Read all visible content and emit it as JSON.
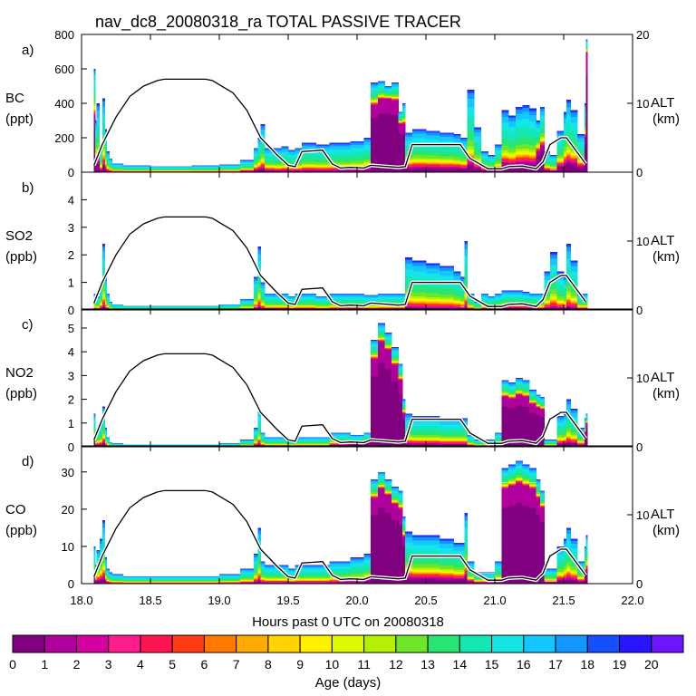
{
  "title": "nav_dc8_20080318_ra TOTAL PASSIVE TRACER",
  "chart_data": {
    "type": "area",
    "x": {
      "label": "Hours past 0 UTC on 20080318",
      "range": [
        18.0,
        22.0
      ],
      "ticks": [
        "18.0",
        "18.5",
        "19.0",
        "19.5",
        "20.0",
        "20.5",
        "21.0",
        "21.5",
        "22.0"
      ]
    },
    "altitude_axis": {
      "label": "ALT",
      "unit": "(km)",
      "range": [
        0,
        20
      ]
    },
    "altitude_profile": {
      "name": "ALT",
      "x": [
        18.09,
        18.15,
        18.25,
        18.35,
        18.45,
        18.55,
        18.6,
        18.9,
        18.95,
        19.1,
        19.2,
        19.3,
        19.42,
        19.5,
        19.55,
        19.6,
        19.75,
        19.82,
        19.88,
        19.95,
        20.05,
        20.1,
        20.3,
        20.35,
        20.4,
        20.75,
        20.82,
        20.95,
        21.05,
        21.1,
        21.2,
        21.3,
        21.35,
        21.4,
        21.48,
        21.52,
        21.66
      ],
      "y": [
        1,
        4,
        8,
        11,
        12.5,
        13.3,
        13.5,
        13.5,
        13.3,
        11.5,
        9,
        5,
        2.5,
        1,
        0.8,
        3,
        3.2,
        1.2,
        0.6,
        0.7,
        0.6,
        1,
        0.7,
        0.8,
        4,
        4,
        2,
        0.5,
        0.5,
        0.8,
        0.9,
        0.5,
        1.5,
        4,
        5,
        5,
        1.2
      ]
    },
    "colorbar": {
      "label": "Age (days)",
      "ticks": [
        "0",
        "1",
        "2",
        "3",
        "4",
        "5",
        "6",
        "7",
        "8",
        "9",
        "10",
        "11",
        "12",
        "13",
        "14",
        "15",
        "16",
        "17",
        "18",
        "19",
        "20"
      ],
      "colors": [
        "#800080",
        "#b0009b",
        "#d4009f",
        "#ff1c8c",
        "#ff1452",
        "#ff3c14",
        "#ff7800",
        "#ffaa00",
        "#ffd200",
        "#fff000",
        "#e0fa00",
        "#b4f000",
        "#6ee628",
        "#28e673",
        "#14e6b4",
        "#14e6e6",
        "#14c8ff",
        "#1496ff",
        "#1450ff",
        "#2814ff",
        "#6e14ff"
      ]
    },
    "panels": [
      {
        "letter": "a)",
        "name": "BC",
        "unit": "(ppt)",
        "ylim": [
          0,
          800
        ],
        "yticks": [
          "0",
          "200",
          "400",
          "600",
          "800"
        ],
        "alt_ticks": [
          "0",
          "10",
          "20"
        ],
        "x": [
          18.09,
          18.1,
          18.11,
          18.13,
          18.15,
          18.17,
          18.18,
          18.2,
          18.22,
          18.3,
          18.5,
          18.8,
          19.0,
          19.15,
          19.25,
          19.28,
          19.3,
          19.33,
          19.4,
          19.45,
          19.5,
          19.55,
          19.6,
          19.7,
          19.8,
          19.95,
          20.05,
          20.1,
          20.15,
          20.2,
          20.25,
          20.3,
          20.33,
          20.35,
          20.4,
          20.5,
          20.6,
          20.7,
          20.75,
          20.78,
          20.8,
          20.85,
          20.9,
          20.95,
          21.0,
          21.05,
          21.1,
          21.15,
          21.2,
          21.25,
          21.3,
          21.33,
          21.36,
          21.4,
          21.45,
          21.5,
          21.52,
          21.55,
          21.6,
          21.65,
          21.66
        ],
        "values": [
          600,
          300,
          400,
          150,
          430,
          250,
          120,
          80,
          50,
          40,
          35,
          40,
          45,
          70,
          140,
          200,
          280,
          140,
          140,
          150,
          130,
          140,
          170,
          160,
          170,
          180,
          200,
          520,
          530,
          500,
          520,
          350,
          400,
          230,
          250,
          240,
          230,
          220,
          200,
          200,
          480,
          260,
          120,
          100,
          160,
          360,
          330,
          380,
          390,
          370,
          300,
          380,
          120,
          100,
          240,
          350,
          420,
          360,
          220,
          400,
          770
        ],
        "old_frac": [
          0.55,
          0.2,
          0.15,
          0.08,
          0.1,
          0.06,
          0.05,
          0.05,
          0.05,
          0.05,
          0.05,
          0.05,
          0.06,
          0.08,
          0.1,
          0.08,
          0.08,
          0.08,
          0.06,
          0.06,
          0.06,
          0.06,
          0.06,
          0.06,
          0.06,
          0.06,
          0.08,
          0.75,
          0.8,
          0.85,
          0.8,
          0.8,
          0.7,
          0.12,
          0.12,
          0.12,
          0.12,
          0.12,
          0.12,
          0.12,
          0.1,
          0.1,
          0.1,
          0.1,
          0.1,
          0.15,
          0.15,
          0.15,
          0.15,
          0.15,
          0.4,
          0.4,
          0.1,
          0.1,
          0.15,
          0.15,
          0.15,
          0.15,
          0.15,
          0.5,
          0.9
        ]
      },
      {
        "letter": "b)",
        "name": "SO2",
        "unit": "(ppb)",
        "ylim": [
          0,
          5
        ],
        "yticks": [
          "0",
          "1",
          "2",
          "3",
          "4"
        ],
        "alt_ticks": [
          "0",
          "10"
        ],
        "x": [
          18.09,
          18.1,
          18.11,
          18.13,
          18.15,
          18.17,
          18.18,
          18.2,
          18.22,
          18.3,
          18.5,
          18.8,
          19.0,
          19.15,
          19.25,
          19.28,
          19.3,
          19.33,
          19.4,
          19.45,
          19.5,
          19.55,
          19.6,
          19.7,
          19.8,
          19.95,
          20.05,
          20.1,
          20.15,
          20.2,
          20.25,
          20.3,
          20.33,
          20.35,
          20.4,
          20.5,
          20.6,
          20.7,
          20.75,
          20.78,
          20.8,
          20.85,
          20.9,
          20.95,
          21.0,
          21.05,
          21.1,
          21.15,
          21.2,
          21.25,
          21.3,
          21.33,
          21.36,
          21.4,
          21.45,
          21.5,
          21.52,
          21.55,
          21.6,
          21.65,
          21.66
        ],
        "values": [
          0.6,
          0.5,
          0.5,
          1.0,
          2.4,
          1.2,
          0.6,
          0.3,
          0.2,
          0.15,
          0.15,
          0.15,
          0.2,
          0.4,
          1.2,
          2.3,
          1.0,
          0.6,
          0.6,
          0.6,
          0.5,
          0.6,
          0.6,
          0.5,
          0.6,
          0.6,
          0.55,
          0.55,
          0.6,
          0.6,
          0.6,
          0.6,
          0.6,
          1.9,
          1.8,
          1.7,
          1.6,
          1.4,
          1.2,
          2.5,
          0.6,
          0.3,
          0.6,
          0.5,
          0.6,
          0.7,
          0.7,
          0.7,
          0.65,
          0.6,
          0.6,
          0.6,
          1.4,
          2.1,
          1.4,
          1.2,
          2.4,
          1.8,
          0.6,
          0.6,
          0.6
        ],
        "old_frac": [
          0.05,
          0.05,
          0.05,
          0.05,
          0.05,
          0.05,
          0.05,
          0.05,
          0.05,
          0.05,
          0.05,
          0.05,
          0.05,
          0.05,
          0.05,
          0.05,
          0.05,
          0.05,
          0.05,
          0.05,
          0.05,
          0.05,
          0.05,
          0.05,
          0.05,
          0.05,
          0.05,
          0.05,
          0.05,
          0.05,
          0.05,
          0.05,
          0.05,
          0.05,
          0.05,
          0.05,
          0.05,
          0.05,
          0.05,
          0.05,
          0.05,
          0.05,
          0.05,
          0.05,
          0.05,
          0.12,
          0.12,
          0.12,
          0.12,
          0.12,
          0.05,
          0.05,
          0.05,
          0.05,
          0.05,
          0.05,
          0.05,
          0.05,
          0.05,
          0.05,
          0.05
        ]
      },
      {
        "letter": "c)",
        "name": "NO2",
        "unit": "(ppb)",
        "ylim": [
          0,
          5.8
        ],
        "yticks": [
          "0",
          "1",
          "2",
          "3",
          "4",
          "5"
        ],
        "alt_ticks": [
          "0",
          "10"
        ],
        "x": [
          18.09,
          18.1,
          18.11,
          18.13,
          18.15,
          18.17,
          18.18,
          18.2,
          18.22,
          18.3,
          18.5,
          18.8,
          19.0,
          19.15,
          19.25,
          19.28,
          19.3,
          19.33,
          19.4,
          19.45,
          19.5,
          19.55,
          19.6,
          19.7,
          19.8,
          19.95,
          20.05,
          20.1,
          20.15,
          20.2,
          20.25,
          20.3,
          20.33,
          20.35,
          20.4,
          20.5,
          20.6,
          20.7,
          20.75,
          20.78,
          20.8,
          20.85,
          20.9,
          20.95,
          21.0,
          21.05,
          21.1,
          21.15,
          21.2,
          21.25,
          21.3,
          21.33,
          21.36,
          21.4,
          21.45,
          21.5,
          21.52,
          21.55,
          21.6,
          21.65,
          21.66
        ],
        "values": [
          1.4,
          0.6,
          0.8,
          1.0,
          1.7,
          0.8,
          0.4,
          0.2,
          0.15,
          0.1,
          0.1,
          0.1,
          0.15,
          0.3,
          0.8,
          1.6,
          0.6,
          0.4,
          0.4,
          0.4,
          0.3,
          0.4,
          0.4,
          0.4,
          0.6,
          0.5,
          0.6,
          4.5,
          5.2,
          4.8,
          4.2,
          3.5,
          2.0,
          1.4,
          1.3,
          1.3,
          1.2,
          1.2,
          1.2,
          1.2,
          0.5,
          0.3,
          0.3,
          0.3,
          0.6,
          2.8,
          2.7,
          2.9,
          2.8,
          2.4,
          2.2,
          2.1,
          0.3,
          0.3,
          1.3,
          1.4,
          2.0,
          1.6,
          0.8,
          1.2,
          1.4
        ],
        "old_frac": [
          0.2,
          0.15,
          0.1,
          0.1,
          0.1,
          0.08,
          0.06,
          0.05,
          0.05,
          0.05,
          0.05,
          0.05,
          0.05,
          0.05,
          0.08,
          0.08,
          0.08,
          0.08,
          0.08,
          0.08,
          0.08,
          0.08,
          0.08,
          0.08,
          0.15,
          0.2,
          0.3,
          0.82,
          0.85,
          0.85,
          0.82,
          0.8,
          0.7,
          0.1,
          0.1,
          0.1,
          0.1,
          0.1,
          0.1,
          0.1,
          0.1,
          0.1,
          0.1,
          0.1,
          0.1,
          0.75,
          0.75,
          0.75,
          0.75,
          0.75,
          0.75,
          0.75,
          0.1,
          0.1,
          0.1,
          0.1,
          0.1,
          0.1,
          0.1,
          0.5,
          0.7
        ]
      },
      {
        "letter": "d)",
        "name": "CO",
        "unit": "(ppb)",
        "ylim": [
          0,
          37
        ],
        "yticks": [
          "0",
          "10",
          "20",
          "30"
        ],
        "alt_ticks": [
          "0",
          "10"
        ],
        "x": [
          18.09,
          18.1,
          18.11,
          18.13,
          18.15,
          18.17,
          18.18,
          18.2,
          18.22,
          18.3,
          18.5,
          18.8,
          19.0,
          19.15,
          19.25,
          19.28,
          19.3,
          19.33,
          19.4,
          19.45,
          19.5,
          19.55,
          19.6,
          19.7,
          19.8,
          19.95,
          20.05,
          20.1,
          20.15,
          20.2,
          20.25,
          20.3,
          20.33,
          20.35,
          20.4,
          20.5,
          20.6,
          20.7,
          20.75,
          20.78,
          20.8,
          20.85,
          20.9,
          20.95,
          21.0,
          21.05,
          21.1,
          21.15,
          21.2,
          21.25,
          21.3,
          21.33,
          21.36,
          21.4,
          21.45,
          21.5,
          21.52,
          21.55,
          21.6,
          21.65,
          21.66
        ],
        "values": [
          10,
          5,
          9,
          12,
          17,
          7,
          4,
          3,
          2.5,
          2,
          2,
          2,
          2.5,
          4,
          8,
          15,
          6,
          5,
          5,
          5,
          4,
          5,
          5,
          5,
          6,
          7,
          8,
          28,
          30,
          28,
          26,
          25,
          18,
          14,
          13,
          13,
          12,
          11,
          11,
          19,
          6,
          3,
          3,
          3,
          6,
          31,
          32,
          33,
          32,
          31,
          28,
          25,
          4,
          4,
          10,
          12,
          15,
          12,
          6,
          10,
          13
        ],
        "old_frac": [
          0.15,
          0.12,
          0.1,
          0.1,
          0.1,
          0.08,
          0.06,
          0.05,
          0.05,
          0.05,
          0.05,
          0.05,
          0.05,
          0.05,
          0.06,
          0.06,
          0.06,
          0.06,
          0.06,
          0.06,
          0.06,
          0.06,
          0.06,
          0.06,
          0.06,
          0.06,
          0.1,
          0.82,
          0.85,
          0.85,
          0.82,
          0.8,
          0.7,
          0.12,
          0.12,
          0.12,
          0.12,
          0.12,
          0.12,
          0.12,
          0.1,
          0.1,
          0.1,
          0.1,
          0.1,
          0.82,
          0.82,
          0.82,
          0.82,
          0.82,
          0.82,
          0.82,
          0.1,
          0.1,
          0.1,
          0.1,
          0.1,
          0.1,
          0.1,
          0.3,
          0.3
        ]
      }
    ]
  }
}
